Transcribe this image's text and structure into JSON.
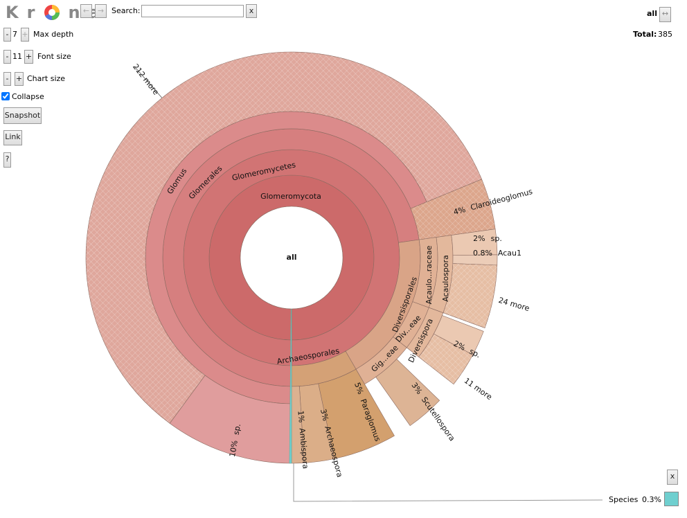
{
  "toolbar": {
    "logo_left": "Kr",
    "logo_right": "na",
    "back": "←",
    "forward": "→",
    "search_label": "Search:",
    "search_clear": "x",
    "max_depth": {
      "minus": "-",
      "value": "7",
      "plus": "+",
      "label": "Max depth"
    },
    "font_size": {
      "minus": "-",
      "value": "11",
      "plus": "+",
      "label": "Font size"
    },
    "chart_size": {
      "minus": "-",
      "plus": "+",
      "label": "Chart size"
    },
    "collapse": "Collapse",
    "snapshot": "Snapshot",
    "link": "Link",
    "help": "?"
  },
  "breadcrumb": {
    "current": "all",
    "swap": "↔",
    "total_label": "Total:",
    "total": "385"
  },
  "chart": {
    "wedges": [
      {
        "label": "all"
      },
      {
        "label": "Glomeromycota"
      },
      {
        "label": "Glomeromycetes"
      },
      {
        "label": "Glomerales"
      },
      {
        "label": "Glomus"
      },
      {
        "label": "212 more"
      },
      {
        "label": "sp.",
        "percent": "10%"
      },
      {
        "label": "Claroideoglomus",
        "percent": "4%"
      },
      {
        "label": "Diversisporales"
      },
      {
        "label": "Acaulo...raceae"
      },
      {
        "label": "Acaulospora"
      },
      {
        "label": "sp.",
        "percent": "2%"
      },
      {
        "label": "Acau1",
        "percent": "0.8%"
      },
      {
        "label": "24 more"
      },
      {
        "label": "Div...eae"
      },
      {
        "label": "Diversispora"
      },
      {
        "label": "sp.",
        "percent": "2%"
      },
      {
        "label": "11 more"
      },
      {
        "label": "Gig...eae"
      },
      {
        "label": "Scutellospora",
        "percent": "3%"
      },
      {
        "label": "Archaeosporales"
      },
      {
        "label": "Paraglomus",
        "percent": "5%"
      },
      {
        "label": "Archaeospora",
        "percent": "3%"
      },
      {
        "label": "Ambispora",
        "percent": "1%"
      }
    ]
  },
  "details": {
    "close": "x",
    "name": "Species",
    "percent": "0.3%"
  }
}
